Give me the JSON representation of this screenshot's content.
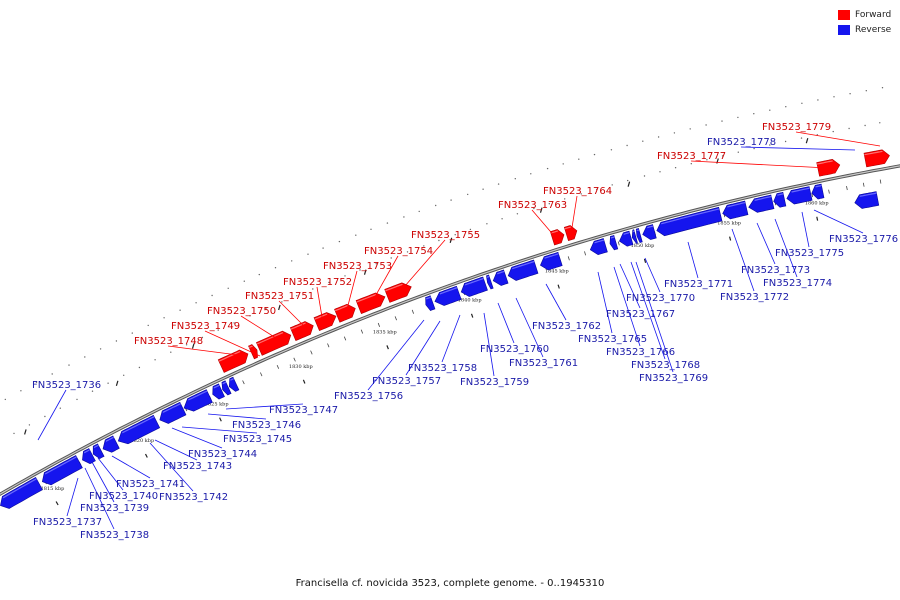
{
  "legend": {
    "forward": {
      "label": "Forward",
      "color": "#ff0000"
    },
    "reverse": {
      "label": "Reverse",
      "color": "#1515ee"
    }
  },
  "caption": "Francisella cf. novicida 3523, complete genome. - 0..1945310",
  "colors": {
    "forward_fill": "#ff0000",
    "forward_top": "#ff8a8a",
    "reverse_fill": "#1515ee",
    "reverse_top": "#7f7fff",
    "forward_label": "#cc0000",
    "reverse_label": "#1a1aa8",
    "backbone": "#777777"
  },
  "tick_labels": [
    "1815 kbp",
    "1820 kbp",
    "1825 kbp",
    "1830 kbp",
    "1835 kbp",
    "1840 kbp",
    "1845 kbp",
    "1850 kbp",
    "1855 kbp",
    "1860 kbp"
  ],
  "genes": [
    {
      "id": "FN3523_1736",
      "strand": "reverse"
    },
    {
      "id": "FN3523_1737",
      "strand": "reverse"
    },
    {
      "id": "FN3523_1738",
      "strand": "reverse"
    },
    {
      "id": "FN3523_1739",
      "strand": "reverse"
    },
    {
      "id": "FN3523_1740",
      "strand": "reverse"
    },
    {
      "id": "FN3523_1741",
      "strand": "reverse"
    },
    {
      "id": "FN3523_1742",
      "strand": "reverse"
    },
    {
      "id": "FN3523_1743",
      "strand": "reverse"
    },
    {
      "id": "FN3523_1744",
      "strand": "reverse"
    },
    {
      "id": "FN3523_1745",
      "strand": "reverse"
    },
    {
      "id": "FN3523_1746",
      "strand": "reverse"
    },
    {
      "id": "FN3523_1747",
      "strand": "reverse"
    },
    {
      "id": "FN3523_1748",
      "strand": "forward"
    },
    {
      "id": "FN3523_1749",
      "strand": "forward"
    },
    {
      "id": "FN3523_1750",
      "strand": "forward"
    },
    {
      "id": "FN3523_1751",
      "strand": "forward"
    },
    {
      "id": "FN3523_1752",
      "strand": "forward"
    },
    {
      "id": "FN3523_1753",
      "strand": "forward"
    },
    {
      "id": "FN3523_1754",
      "strand": "forward"
    },
    {
      "id": "FN3523_1755",
      "strand": "forward"
    },
    {
      "id": "FN3523_1756",
      "strand": "reverse"
    },
    {
      "id": "FN3523_1757",
      "strand": "reverse"
    },
    {
      "id": "FN3523_1758",
      "strand": "reverse"
    },
    {
      "id": "FN3523_1759",
      "strand": "reverse"
    },
    {
      "id": "FN3523_1760",
      "strand": "reverse"
    },
    {
      "id": "FN3523_1761",
      "strand": "reverse"
    },
    {
      "id": "FN3523_1762",
      "strand": "reverse"
    },
    {
      "id": "FN3523_1763",
      "strand": "forward"
    },
    {
      "id": "FN3523_1764",
      "strand": "forward"
    },
    {
      "id": "FN3523_1765",
      "strand": "reverse"
    },
    {
      "id": "FN3523_1766",
      "strand": "reverse"
    },
    {
      "id": "FN3523_1767",
      "strand": "reverse"
    },
    {
      "id": "FN3523_1768",
      "strand": "reverse"
    },
    {
      "id": "FN3523_1769",
      "strand": "reverse"
    },
    {
      "id": "FN3523_1770",
      "strand": "reverse"
    },
    {
      "id": "FN3523_1771",
      "strand": "reverse"
    },
    {
      "id": "FN3523_1772",
      "strand": "reverse"
    },
    {
      "id": "FN3523_1773",
      "strand": "reverse"
    },
    {
      "id": "FN3523_1774",
      "strand": "reverse"
    },
    {
      "id": "FN3523_1775",
      "strand": "reverse"
    },
    {
      "id": "FN3523_1776",
      "strand": "reverse"
    },
    {
      "id": "FN3523_1777",
      "strand": "forward"
    },
    {
      "id": "FN3523_1778",
      "strand": "reverse"
    },
    {
      "id": "FN3523_1779",
      "strand": "forward"
    }
  ]
}
